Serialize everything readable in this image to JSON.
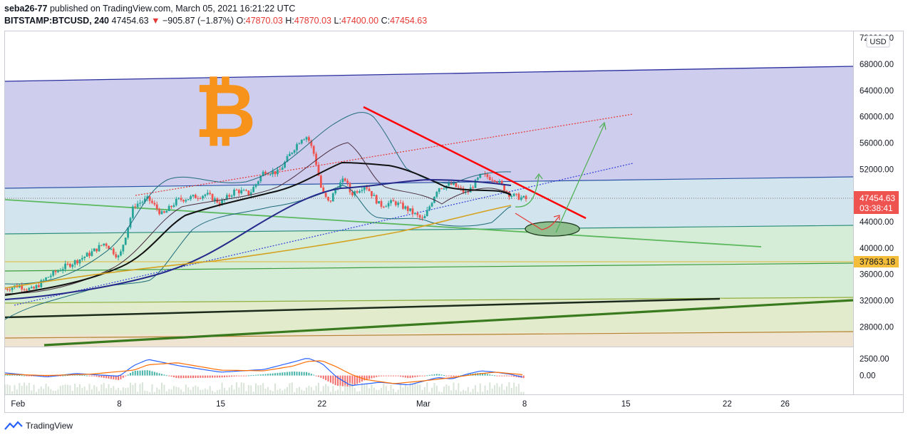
{
  "publish_line": {
    "author": "seba26-77",
    "text": " published on TradingView.com, March 05, 2021 16:21:22 UTC"
  },
  "ohlc_line": {
    "symbol": "BITSTAMP:BTCUSD, 240",
    "last": "47454.63",
    "arrow": "▼",
    "change": "−905.87 (−1.87%)",
    "o_label": "O:",
    "o_value": "47870.03",
    "h_label": "H:",
    "h_value": "47870.03",
    "l_label": "L:",
    "l_value": "47400.00",
    "c_label": "C:",
    "c_value": "47454.63"
  },
  "currency_label": "USD",
  "price_tag": {
    "price": "47454.63",
    "countdown": "03:38:41"
  },
  "level_tag": "37863.18",
  "logo_glyph": "₿",
  "footer_brand": "TradingView",
  "colors": {
    "up": "#26a69a",
    "down": "#ef5350",
    "trend_red": "#ff0000",
    "purple_zone": "#cfcdee",
    "blue_zone": "#d2e4ee",
    "green_zone": "#d5ecd6",
    "olive_zone": "#e2eccd",
    "tan_zone": "#efe4d2",
    "orange_logo": "#f7931a"
  },
  "chart_data": {
    "type": "candlestick",
    "y_axis_ticks": [
      "72000.00",
      "68000.00",
      "64000.00",
      "60000.00",
      "56000.00",
      "52000.00",
      "48000.00",
      "44000.00",
      "40000.00",
      "36000.00",
      "32000.00",
      "28000.00"
    ],
    "y_axis_tick_values": [
      72000,
      68000,
      64000,
      60000,
      56000,
      52000,
      48000,
      44000,
      40000,
      36000,
      32000,
      28000
    ],
    "y_range": [
      25000,
      73000
    ],
    "x_axis_ticks": [
      "Feb",
      "8",
      "15",
      "22",
      "Mar",
      "8",
      "15",
      "22",
      "26"
    ],
    "x_axis_tick_days": [
      1,
      8,
      15,
      22,
      29,
      36,
      43,
      50,
      54
    ],
    "x_range_days": [
      0.1,
      58.7
    ],
    "close_path_days": [
      0.1,
      1,
      2,
      3,
      4,
      5,
      6,
      7,
      8,
      9,
      10,
      11,
      12,
      13,
      14,
      15,
      16,
      17,
      18,
      19,
      20,
      20.6,
      21,
      21.5,
      22,
      22.5,
      23,
      23.6,
      24,
      25,
      26,
      27,
      28,
      29,
      30,
      31,
      32,
      33,
      34,
      35,
      36.2
    ],
    "close_path_values": [
      33800,
      34300,
      33600,
      35500,
      36900,
      38000,
      39200,
      40800,
      38500,
      46500,
      47500,
      45000,
      47300,
      47700,
      48200,
      46800,
      48800,
      48300,
      51700,
      51500,
      55000,
      56800,
      57000,
      54000,
      48500,
      46800,
      49300,
      50500,
      48200,
      49600,
      46500,
      47000,
      45800,
      44200,
      49200,
      49700,
      48300,
      51100,
      50500,
      48100,
      47400
    ],
    "macd_axis_ticks": [
      "2500.00",
      "0.00"
    ],
    "macd_tick_values": [
      2500,
      0
    ],
    "macd_range": [
      -2800,
      4200
    ],
    "macd_line_days": [
      0.1,
      3,
      5,
      8,
      9,
      10,
      12,
      15,
      18,
      20,
      21,
      22,
      23,
      24,
      26,
      28,
      30,
      31,
      32,
      33,
      34,
      35,
      36
    ],
    "macd_line_values": [
      400,
      -200,
      300,
      -100,
      1500,
      2400,
      1500,
      500,
      900,
      2000,
      2600,
      1800,
      -200,
      -1500,
      -1000,
      -1400,
      -300,
      -500,
      200,
      700,
      500,
      200,
      -300
    ],
    "signal_line_days": [
      0.1,
      3,
      6,
      9,
      10,
      12,
      15,
      18,
      20,
      21,
      22,
      23,
      24,
      25,
      27,
      29,
      31,
      33,
      34,
      36
    ],
    "signal_line_values": [
      200,
      0,
      200,
      800,
      1600,
      1900,
      800,
      700,
      1400,
      2100,
      2200,
      1300,
      200,
      -600,
      -1200,
      -800,
      -300,
      300,
      500,
      100
    ],
    "last_price": 47454.63,
    "highlighted_level": 37863.18
  }
}
